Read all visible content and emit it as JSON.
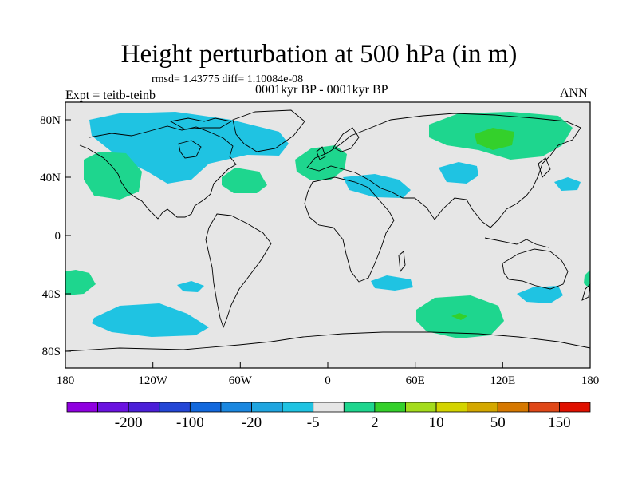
{
  "header": {
    "title": "Height perturbation at 500 hPa (in m)",
    "stats": "rmsd= 1.43775 diff= 1.10084e-08",
    "left_label": "Expt = teitb-teinb",
    "center_label": "0001kyr BP - 0001kyr BP",
    "right_label": "ANN"
  },
  "axes": {
    "lon_ticks": [
      "180",
      "120W",
      "60W",
      "0",
      "60E",
      "120E",
      "180"
    ],
    "lat_ticks": [
      "80N",
      "40N",
      "0",
      "40S",
      "80S"
    ]
  },
  "colorbar": {
    "colors": [
      "#8f00e0",
      "#6a12e0",
      "#4b1fd8",
      "#2346d6",
      "#1268dd",
      "#1a87e0",
      "#1fa5e0",
      "#1fc3e2",
      "#e6e6e6",
      "#1ed68e",
      "#34d02b",
      "#a4dc1c",
      "#d4d400",
      "#d4a800",
      "#d67800",
      "#e04818",
      "#e01000"
    ],
    "labels": [
      "-200",
      "-100",
      "-20",
      "-5",
      "2",
      "10",
      "50",
      "150"
    ],
    "label_after_box": [
      1,
      3,
      5,
      7,
      9,
      11,
      13,
      15
    ]
  },
  "map": {
    "background": "#e6e6e6",
    "coastline_color": "#000000"
  }
}
